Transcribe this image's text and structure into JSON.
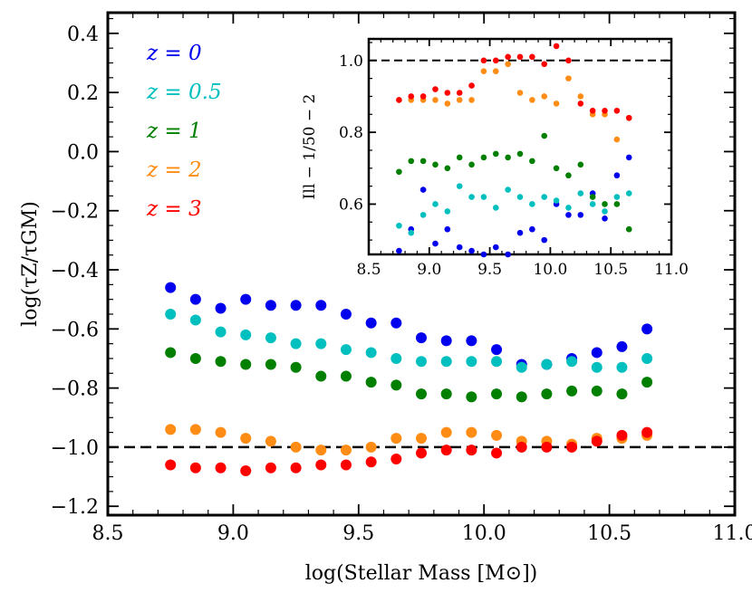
{
  "chart_data": [
    {
      "type": "scatter",
      "title": "",
      "xlabel": "log(Stellar Mass [M⊙])",
      "ylabel": "log(τZ/τGM)",
      "xlim": [
        8.5,
        11.0
      ],
      "ylim": [
        -1.23,
        0.47
      ],
      "xticks": [
        8.5,
        9.0,
        9.5,
        10.0,
        10.5,
        11.0
      ],
      "xtick_labels": [
        "8.5",
        "9.0",
        "9.5",
        "10.0",
        "10.5",
        "11.0"
      ],
      "yticks": [
        -1.2,
        -1.0,
        -0.8,
        -0.6,
        -0.4,
        -0.2,
        0.0,
        0.2,
        0.4
      ],
      "ytick_labels": [
        "−1.2",
        "−1.0",
        "−0.8",
        "−0.6",
        "−0.4",
        "−0.2",
        "0.0",
        "0.2",
        "0.4"
      ],
      "reference_line": {
        "y": -1.0,
        "style": "dashed",
        "color": "#000000"
      },
      "x": [
        8.75,
        8.85,
        8.95,
        9.05,
        9.15,
        9.25,
        9.35,
        9.45,
        9.55,
        9.65,
        9.75,
        9.85,
        9.95,
        10.05,
        10.15,
        10.25,
        10.35,
        10.45,
        10.55,
        10.65
      ],
      "series": [
        {
          "name": "z = 0",
          "color": "#0000ee",
          "values": [
            -0.46,
            -0.5,
            -0.53,
            -0.5,
            -0.52,
            -0.52,
            -0.52,
            -0.55,
            -0.58,
            -0.58,
            -0.63,
            -0.64,
            -0.64,
            -0.67,
            -0.72,
            -0.72,
            -0.7,
            -0.68,
            -0.66,
            -0.6
          ]
        },
        {
          "name": "z = 0.5",
          "color": "#00bfbf",
          "values": [
            -0.55,
            -0.57,
            -0.61,
            -0.62,
            -0.63,
            -0.65,
            -0.65,
            -0.67,
            -0.68,
            -0.7,
            -0.71,
            -0.71,
            -0.71,
            -0.71,
            -0.73,
            -0.72,
            -0.71,
            -0.73,
            -0.73,
            -0.7
          ]
        },
        {
          "name": "z = 1",
          "color": "#007f00",
          "values": [
            -0.68,
            -0.7,
            -0.71,
            -0.72,
            -0.72,
            -0.73,
            -0.76,
            -0.76,
            -0.78,
            -0.79,
            -0.82,
            -0.82,
            -0.83,
            -0.82,
            -0.83,
            -0.82,
            -0.81,
            -0.81,
            -0.82,
            -0.78
          ]
        },
        {
          "name": "z = 2",
          "color": "#ff8c14",
          "values": [
            -0.94,
            -0.94,
            -0.95,
            -0.97,
            -0.98,
            -1.0,
            -1.01,
            -1.01,
            -1.0,
            -0.97,
            -0.97,
            -0.95,
            -0.95,
            -0.96,
            -0.98,
            -0.98,
            -0.99,
            -0.97,
            -0.97,
            -0.96
          ]
        },
        {
          "name": "z = 3",
          "color": "#ff0000",
          "values": [
            -1.06,
            -1.07,
            -1.07,
            -1.08,
            -1.07,
            -1.07,
            -1.06,
            -1.06,
            -1.05,
            -1.04,
            -1.02,
            -1.01,
            -1.01,
            -1.02,
            -1.0,
            -1.0,
            -1.0,
            -0.98,
            -0.96,
            -0.95
          ]
        }
      ],
      "legend": {
        "placement": "top-left",
        "entries": [
          "z = 0",
          "z = 0.5",
          "z = 1",
          "z = 2",
          "z = 3"
        ]
      }
    },
    {
      "type": "scatter",
      "title": "",
      "xlabel": "",
      "ylabel": "Ill − 1/50 − 2",
      "xlim": [
        8.5,
        11.0
      ],
      "ylim": [
        0.46,
        1.06
      ],
      "xticks": [
        8.5,
        9.0,
        9.5,
        10.0,
        10.5,
        11.0
      ],
      "xtick_labels": [
        "8.5",
        "9.0",
        "9.5",
        "10.0",
        "10.5",
        "11.0"
      ],
      "yticks": [
        0.6,
        0.8,
        1.0
      ],
      "ytick_labels": [
        "0.6",
        "0.8",
        "1.0"
      ],
      "reference_line": {
        "y": 1.0,
        "style": "dashed",
        "color": "#000000"
      },
      "x": [
        8.75,
        8.85,
        8.95,
        9.05,
        9.15,
        9.25,
        9.35,
        9.45,
        9.55,
        9.65,
        9.75,
        9.85,
        9.95,
        10.05,
        10.15,
        10.25,
        10.35,
        10.45,
        10.55,
        10.65
      ],
      "series": [
        {
          "name": "z = 0",
          "color": "#0000ee",
          "values": [
            0.47,
            0.53,
            0.64,
            0.49,
            0.53,
            0.48,
            0.47,
            0.46,
            0.48,
            0.46,
            0.52,
            0.53,
            0.5,
            0.6,
            0.57,
            0.57,
            0.63,
            0.56,
            0.68,
            0.73
          ]
        },
        {
          "name": "z = 0.5",
          "color": "#00bfbf",
          "values": [
            0.54,
            0.52,
            0.57,
            0.6,
            0.58,
            0.65,
            0.62,
            0.62,
            0.59,
            0.64,
            0.62,
            0.6,
            0.62,
            0.61,
            0.59,
            0.63,
            0.6,
            0.58,
            0.62,
            0.63
          ]
        },
        {
          "name": "z = 1",
          "color": "#007f00",
          "values": [
            0.69,
            0.72,
            0.72,
            0.71,
            0.7,
            0.73,
            0.71,
            0.73,
            0.74,
            0.73,
            0.74,
            0.72,
            0.79,
            0.7,
            0.68,
            0.71,
            0.62,
            0.6,
            0.6,
            0.53
          ]
        },
        {
          "name": "z = 2",
          "color": "#ff8c14",
          "values": [
            0.89,
            0.89,
            0.89,
            0.89,
            0.88,
            0.89,
            0.89,
            0.97,
            0.97,
            0.99,
            0.91,
            0.89,
            0.9,
            0.88,
            0.95,
            0.9,
            0.85,
            0.85,
            0.78,
            0.84
          ]
        },
        {
          "name": "z = 3",
          "color": "#ff0000",
          "values": [
            0.89,
            0.9,
            0.9,
            0.92,
            0.91,
            0.91,
            0.93,
            1.0,
            1.0,
            1.01,
            1.01,
            1.01,
            0.99,
            1.04,
            1.0,
            0.88,
            0.86,
            0.86,
            0.86,
            0.84
          ]
        }
      ]
    }
  ]
}
